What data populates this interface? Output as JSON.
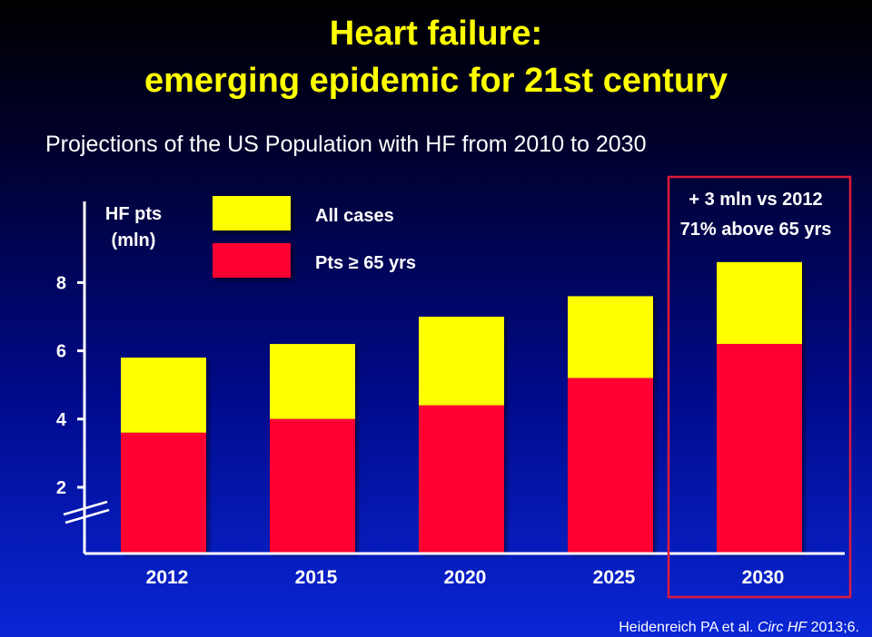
{
  "title_line1": "Heart failure:",
  "title_line2": "emerging epidemic for 21st century",
  "subtitle": "Projections of the US Population with HF from 2010 to 2030",
  "colors": {
    "all_cases": "#ffff00",
    "pts_65": "#ff0033",
    "highlight_box": "#e01a3a",
    "text": "#ffffff",
    "title": "#ffff00"
  },
  "chart_data": {
    "type": "bar",
    "stacked": true,
    "ylabel": "HF pts\n(mln)",
    "ylabel_lines": [
      "HF pts",
      "(mln)"
    ],
    "ylim": [
      1.0,
      8.4
    ],
    "y_axis_break": true,
    "y_ticks": [
      2,
      4,
      6,
      8
    ],
    "categories": [
      "2012",
      "2015",
      "2020",
      "2025",
      "2030"
    ],
    "series": [
      {
        "name": "All cases",
        "values": [
          5.8,
          6.2,
          7.0,
          7.6,
          8.6
        ]
      },
      {
        "name": "Pts ≥ 65 yrs",
        "values": [
          3.6,
          4.0,
          4.4,
          5.2,
          6.2
        ]
      }
    ],
    "legend": {
      "placement": "top-left",
      "entries": [
        "All cases",
        "Pts ≥ 65 yrs"
      ]
    },
    "annotation": {
      "lines": [
        "+ 3 mln vs 2012",
        "71% above 65 yrs"
      ],
      "highlighted_category": "2030"
    },
    "grid": false
  },
  "citation": {
    "authors": "Heidenreich PA  et al.",
    "journal": "Circ HF",
    "ref": "2013;6."
  }
}
